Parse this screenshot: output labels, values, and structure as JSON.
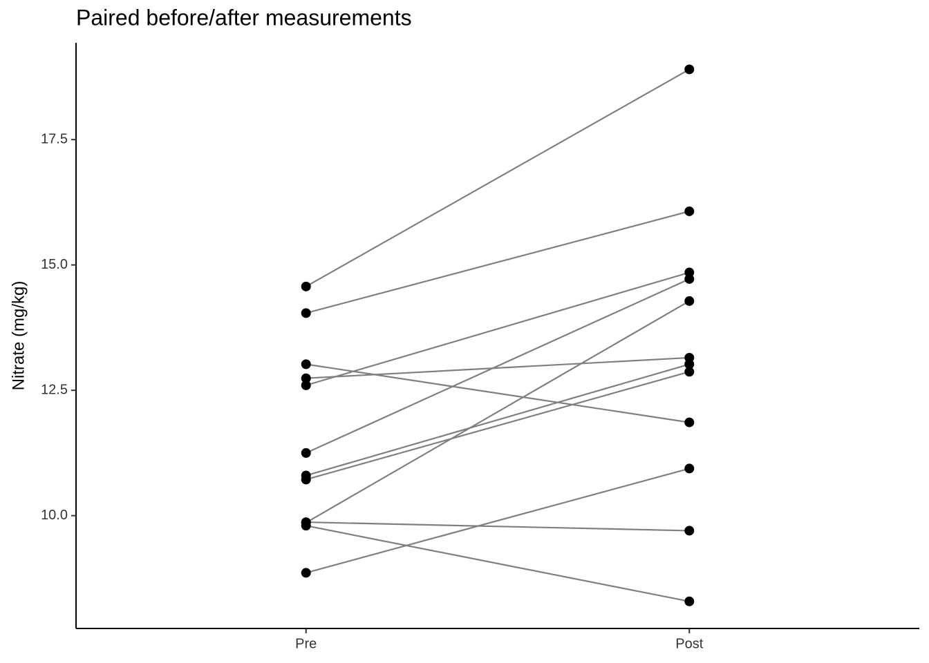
{
  "chart_data": {
    "type": "line",
    "title": "Paired before/after measurements",
    "y_label": "Nitrate (mg/kg)",
    "categories": [
      "Pre",
      "Post"
    ],
    "line_color": "#7f7f7f",
    "point_color": "#000000",
    "series": [
      {
        "values": [
          14.57,
          18.9
        ]
      },
      {
        "values": [
          14.04,
          16.07
        ]
      },
      {
        "values": [
          12.6,
          14.85
        ]
      },
      {
        "values": [
          12.74,
          13.15
        ]
      },
      {
        "values": [
          13.02,
          11.86
        ]
      },
      {
        "values": [
          11.25,
          14.72
        ]
      },
      {
        "values": [
          10.8,
          13.02
        ]
      },
      {
        "values": [
          10.72,
          12.87
        ]
      },
      {
        "values": [
          9.86,
          14.28
        ]
      },
      {
        "values": [
          9.87,
          9.7
        ]
      },
      {
        "values": [
          9.8,
          8.29
        ]
      },
      {
        "values": [
          8.86,
          10.94
        ]
      }
    ],
    "ylim": [
      7.75,
      19.43
    ],
    "yticks": [
      {
        "value": 10,
        "label": "10.0"
      },
      12.5,
      {
        "value": 15,
        "label": "15.0"
      },
      17.5
    ],
    "grid": false
  }
}
